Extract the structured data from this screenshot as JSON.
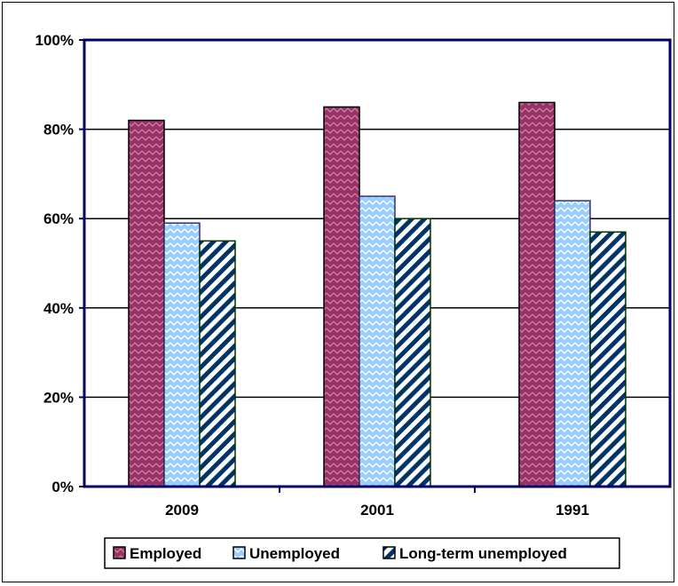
{
  "chart_data": {
    "type": "bar",
    "title": "",
    "xlabel": "",
    "ylabel": "",
    "categories": [
      "2009",
      "2001",
      "1991"
    ],
    "series": [
      {
        "name": "Employed",
        "values": [
          82,
          85,
          86
        ],
        "color": "#993366",
        "pattern": "zigzag"
      },
      {
        "name": "Unemployed",
        "values": [
          59,
          65,
          64
        ],
        "color": "#99ccff",
        "pattern": "zigzag"
      },
      {
        "name": "Long-term unemployed",
        "values": [
          55,
          60,
          57
        ],
        "color": "#003366",
        "pattern": "diagonal-stripes"
      }
    ],
    "ylim": [
      0,
      100
    ],
    "yticks": [
      "0%",
      "20%",
      "40%",
      "60%",
      "80%",
      "100%"
    ],
    "grid": true,
    "legend_position": "bottom"
  }
}
